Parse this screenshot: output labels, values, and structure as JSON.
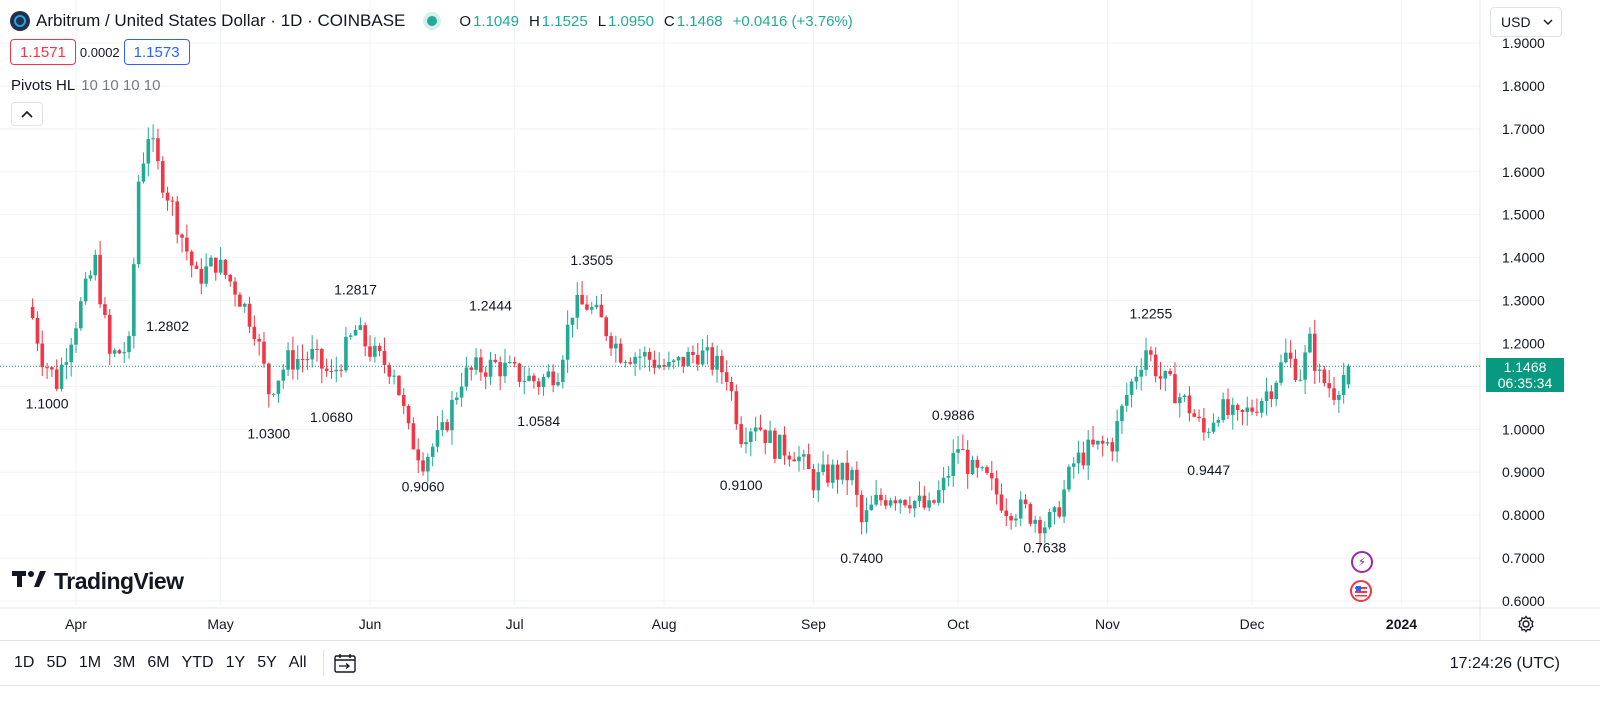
{
  "header": {
    "title": "Arbitrum / United States Dollar · 1D · COINBASE",
    "ohlc": [
      {
        "label": "O",
        "value": "1.1049"
      },
      {
        "label": "H",
        "value": "1.1525"
      },
      {
        "label": "L",
        "value": "1.0950"
      },
      {
        "label": "C",
        "value": "1.1468"
      }
    ],
    "change": "+0.0416 (+3.76%)",
    "sell_price": "1.1571",
    "spread": "0.0002",
    "buy_price": "1.1573",
    "indicator_name": "Pivots HL",
    "indicator_params": "10 10 10 10"
  },
  "currency_selector": {
    "value": "USD"
  },
  "branding": {
    "logo_text": "TradingView"
  },
  "last_price": {
    "price": "1.1468",
    "countdown": "06:35:34"
  },
  "bottom_bar": {
    "timeframes": [
      "1D",
      "5D",
      "1M",
      "3M",
      "6M",
      "YTD",
      "1Y",
      "5Y",
      "All"
    ],
    "clock": "17:24:26 (UTC)"
  },
  "colors": {
    "up": "#22ab94",
    "down": "#f23645",
    "last_price": "#089981",
    "grid": "#f0f3fa"
  },
  "icons": [
    "arbitrum-coin-icon",
    "market-status-dot-icon",
    "chevron-up-icon",
    "chevron-down-icon",
    "lightning-event-icon",
    "us-flag-event-icon",
    "gear-icon",
    "calendar-range-icon"
  ],
  "chart_data": {
    "type": "candlestick",
    "title": "Arbitrum / United States Dollar · 1D · COINBASE",
    "ylim": [
      0.6,
      1.9
    ],
    "y_ticks": [
      "0.6000",
      "0.7000",
      "0.8000",
      "0.9000",
      "1.0000",
      "1.1000",
      "1.2000",
      "1.3000",
      "1.4000",
      "1.5000",
      "1.6000",
      "1.7000",
      "1.8000",
      "1.9000"
    ],
    "x_ticks": [
      {
        "label": "Apr",
        "date": "2023-04-01"
      },
      {
        "label": "May",
        "date": "2023-05-01"
      },
      {
        "label": "Jun",
        "date": "2023-06-01"
      },
      {
        "label": "Jul",
        "date": "2023-07-01"
      },
      {
        "label": "Aug",
        "date": "2023-08-01"
      },
      {
        "label": "Sep",
        "date": "2023-09-01"
      },
      {
        "label": "Oct",
        "date": "2023-10-01"
      },
      {
        "label": "Nov",
        "date": "2023-11-01"
      },
      {
        "label": "Dec",
        "date": "2023-12-01"
      },
      {
        "label": "2024",
        "date": "2024-01-01"
      }
    ],
    "close_path": [
      [
        "2023-03-23",
        1.26
      ],
      [
        "2023-03-25",
        1.17
      ],
      [
        "2023-03-28",
        1.11
      ],
      [
        "2023-03-31",
        1.22
      ],
      [
        "2023-04-05",
        1.39
      ],
      [
        "2023-04-08",
        1.17
      ],
      [
        "2023-04-12",
        1.19
      ],
      [
        "2023-04-14",
        1.58
      ],
      [
        "2023-04-16",
        1.69
      ],
      [
        "2023-04-18",
        1.61
      ],
      [
        "2023-04-20",
        1.55
      ],
      [
        "2023-04-23",
        1.45
      ],
      [
        "2023-04-26",
        1.35
      ],
      [
        "2023-04-30",
        1.39
      ],
      [
        "2023-05-04",
        1.33
      ],
      [
        "2023-05-08",
        1.24
      ],
      [
        "2023-05-11",
        1.09
      ],
      [
        "2023-05-15",
        1.16
      ],
      [
        "2023-05-20",
        1.17
      ],
      [
        "2023-05-24",
        1.12
      ],
      [
        "2023-05-29",
        1.23
      ],
      [
        "2023-06-02",
        1.17
      ],
      [
        "2023-06-06",
        1.14
      ],
      [
        "2023-06-09",
        0.99
      ],
      [
        "2023-06-12",
        0.93
      ],
      [
        "2023-06-16",
        0.99
      ],
      [
        "2023-06-20",
        1.12
      ],
      [
        "2023-06-23",
        1.14
      ],
      [
        "2023-06-27",
        1.15
      ],
      [
        "2023-07-01",
        1.13
      ],
      [
        "2023-07-06",
        1.11
      ],
      [
        "2023-07-10",
        1.14
      ],
      [
        "2023-07-13",
        1.28
      ],
      [
        "2023-07-16",
        1.29
      ],
      [
        "2023-07-19",
        1.25
      ],
      [
        "2023-07-23",
        1.18
      ],
      [
        "2023-07-28",
        1.17
      ],
      [
        "2023-08-02",
        1.14
      ],
      [
        "2023-08-08",
        1.18
      ],
      [
        "2023-08-14",
        1.13
      ],
      [
        "2023-08-17",
        0.99
      ],
      [
        "2023-08-20",
        1.02
      ],
      [
        "2023-08-24",
        0.96
      ],
      [
        "2023-08-28",
        0.95
      ],
      [
        "2023-09-01",
        0.88
      ],
      [
        "2023-09-05",
        0.9
      ],
      [
        "2023-09-09",
        0.89
      ],
      [
        "2023-09-11",
        0.78
      ],
      [
        "2023-09-14",
        0.83
      ],
      [
        "2023-09-17",
        0.85
      ],
      [
        "2023-09-21",
        0.84
      ],
      [
        "2023-09-25",
        0.81
      ],
      [
        "2023-09-28",
        0.87
      ],
      [
        "2023-10-01",
        0.96
      ],
      [
        "2023-10-04",
        0.9
      ],
      [
        "2023-10-07",
        0.88
      ],
      [
        "2023-10-11",
        0.82
      ],
      [
        "2023-10-15",
        0.81
      ],
      [
        "2023-10-19",
        0.78
      ],
      [
        "2023-10-21",
        0.79
      ],
      [
        "2023-10-25",
        0.92
      ],
      [
        "2023-10-28",
        0.95
      ],
      [
        "2023-11-02",
        0.97
      ],
      [
        "2023-11-05",
        1.08
      ],
      [
        "2023-11-09",
        1.19
      ],
      [
        "2023-11-12",
        1.12
      ],
      [
        "2023-11-15",
        1.09
      ],
      [
        "2023-11-18",
        1.05
      ],
      [
        "2023-11-21",
        0.99
      ],
      [
        "2023-11-24",
        1.05
      ],
      [
        "2023-11-28",
        1.02
      ],
      [
        "2023-12-01",
        1.05
      ],
      [
        "2023-12-05",
        1.1
      ],
      [
        "2023-12-08",
        1.17
      ],
      [
        "2023-12-11",
        1.13
      ],
      [
        "2023-12-13",
        1.2
      ],
      [
        "2023-12-15",
        1.12
      ],
      [
        "2023-12-18",
        1.09
      ],
      [
        "2023-12-21",
        1.1468
      ]
    ],
    "pivot_labels": [
      {
        "date": "2023-03-26",
        "value": 1.1,
        "text": "1.1000",
        "kind": "low"
      },
      {
        "date": "2023-04-20",
        "value": 1.2802,
        "text": "1.2802",
        "kind": "low"
      },
      {
        "date": "2023-05-11",
        "value": 1.03,
        "text": "1.0300",
        "kind": "low"
      },
      {
        "date": "2023-05-29",
        "value": 1.2817,
        "text": "1.2817",
        "kind": "high"
      },
      {
        "date": "2023-05-24",
        "value": 1.068,
        "text": "1.0680",
        "kind": "low"
      },
      {
        "date": "2023-06-12",
        "value": 0.906,
        "text": "0.9060",
        "kind": "low"
      },
      {
        "date": "2023-06-26",
        "value": 1.2444,
        "text": "1.2444",
        "kind": "high"
      },
      {
        "date": "2023-07-06",
        "value": 1.0584,
        "text": "1.0584",
        "kind": "low"
      },
      {
        "date": "2023-07-17",
        "value": 1.3505,
        "text": "1.3505",
        "kind": "high"
      },
      {
        "date": "2023-08-17",
        "value": 0.91,
        "text": "0.9100",
        "kind": "low"
      },
      {
        "date": "2023-09-11",
        "value": 0.74,
        "text": "0.7400",
        "kind": "low"
      },
      {
        "date": "2023-09-30",
        "value": 0.9886,
        "text": "0.9886",
        "kind": "high"
      },
      {
        "date": "2023-10-19",
        "value": 0.7638,
        "text": "0.7638",
        "kind": "low"
      },
      {
        "date": "2023-11-10",
        "value": 1.2255,
        "text": "1.2255",
        "kind": "high"
      },
      {
        "date": "2023-11-22",
        "value": 0.9447,
        "text": "0.9447",
        "kind": "low"
      }
    ],
    "last_price": 1.1468,
    "grid": true
  }
}
